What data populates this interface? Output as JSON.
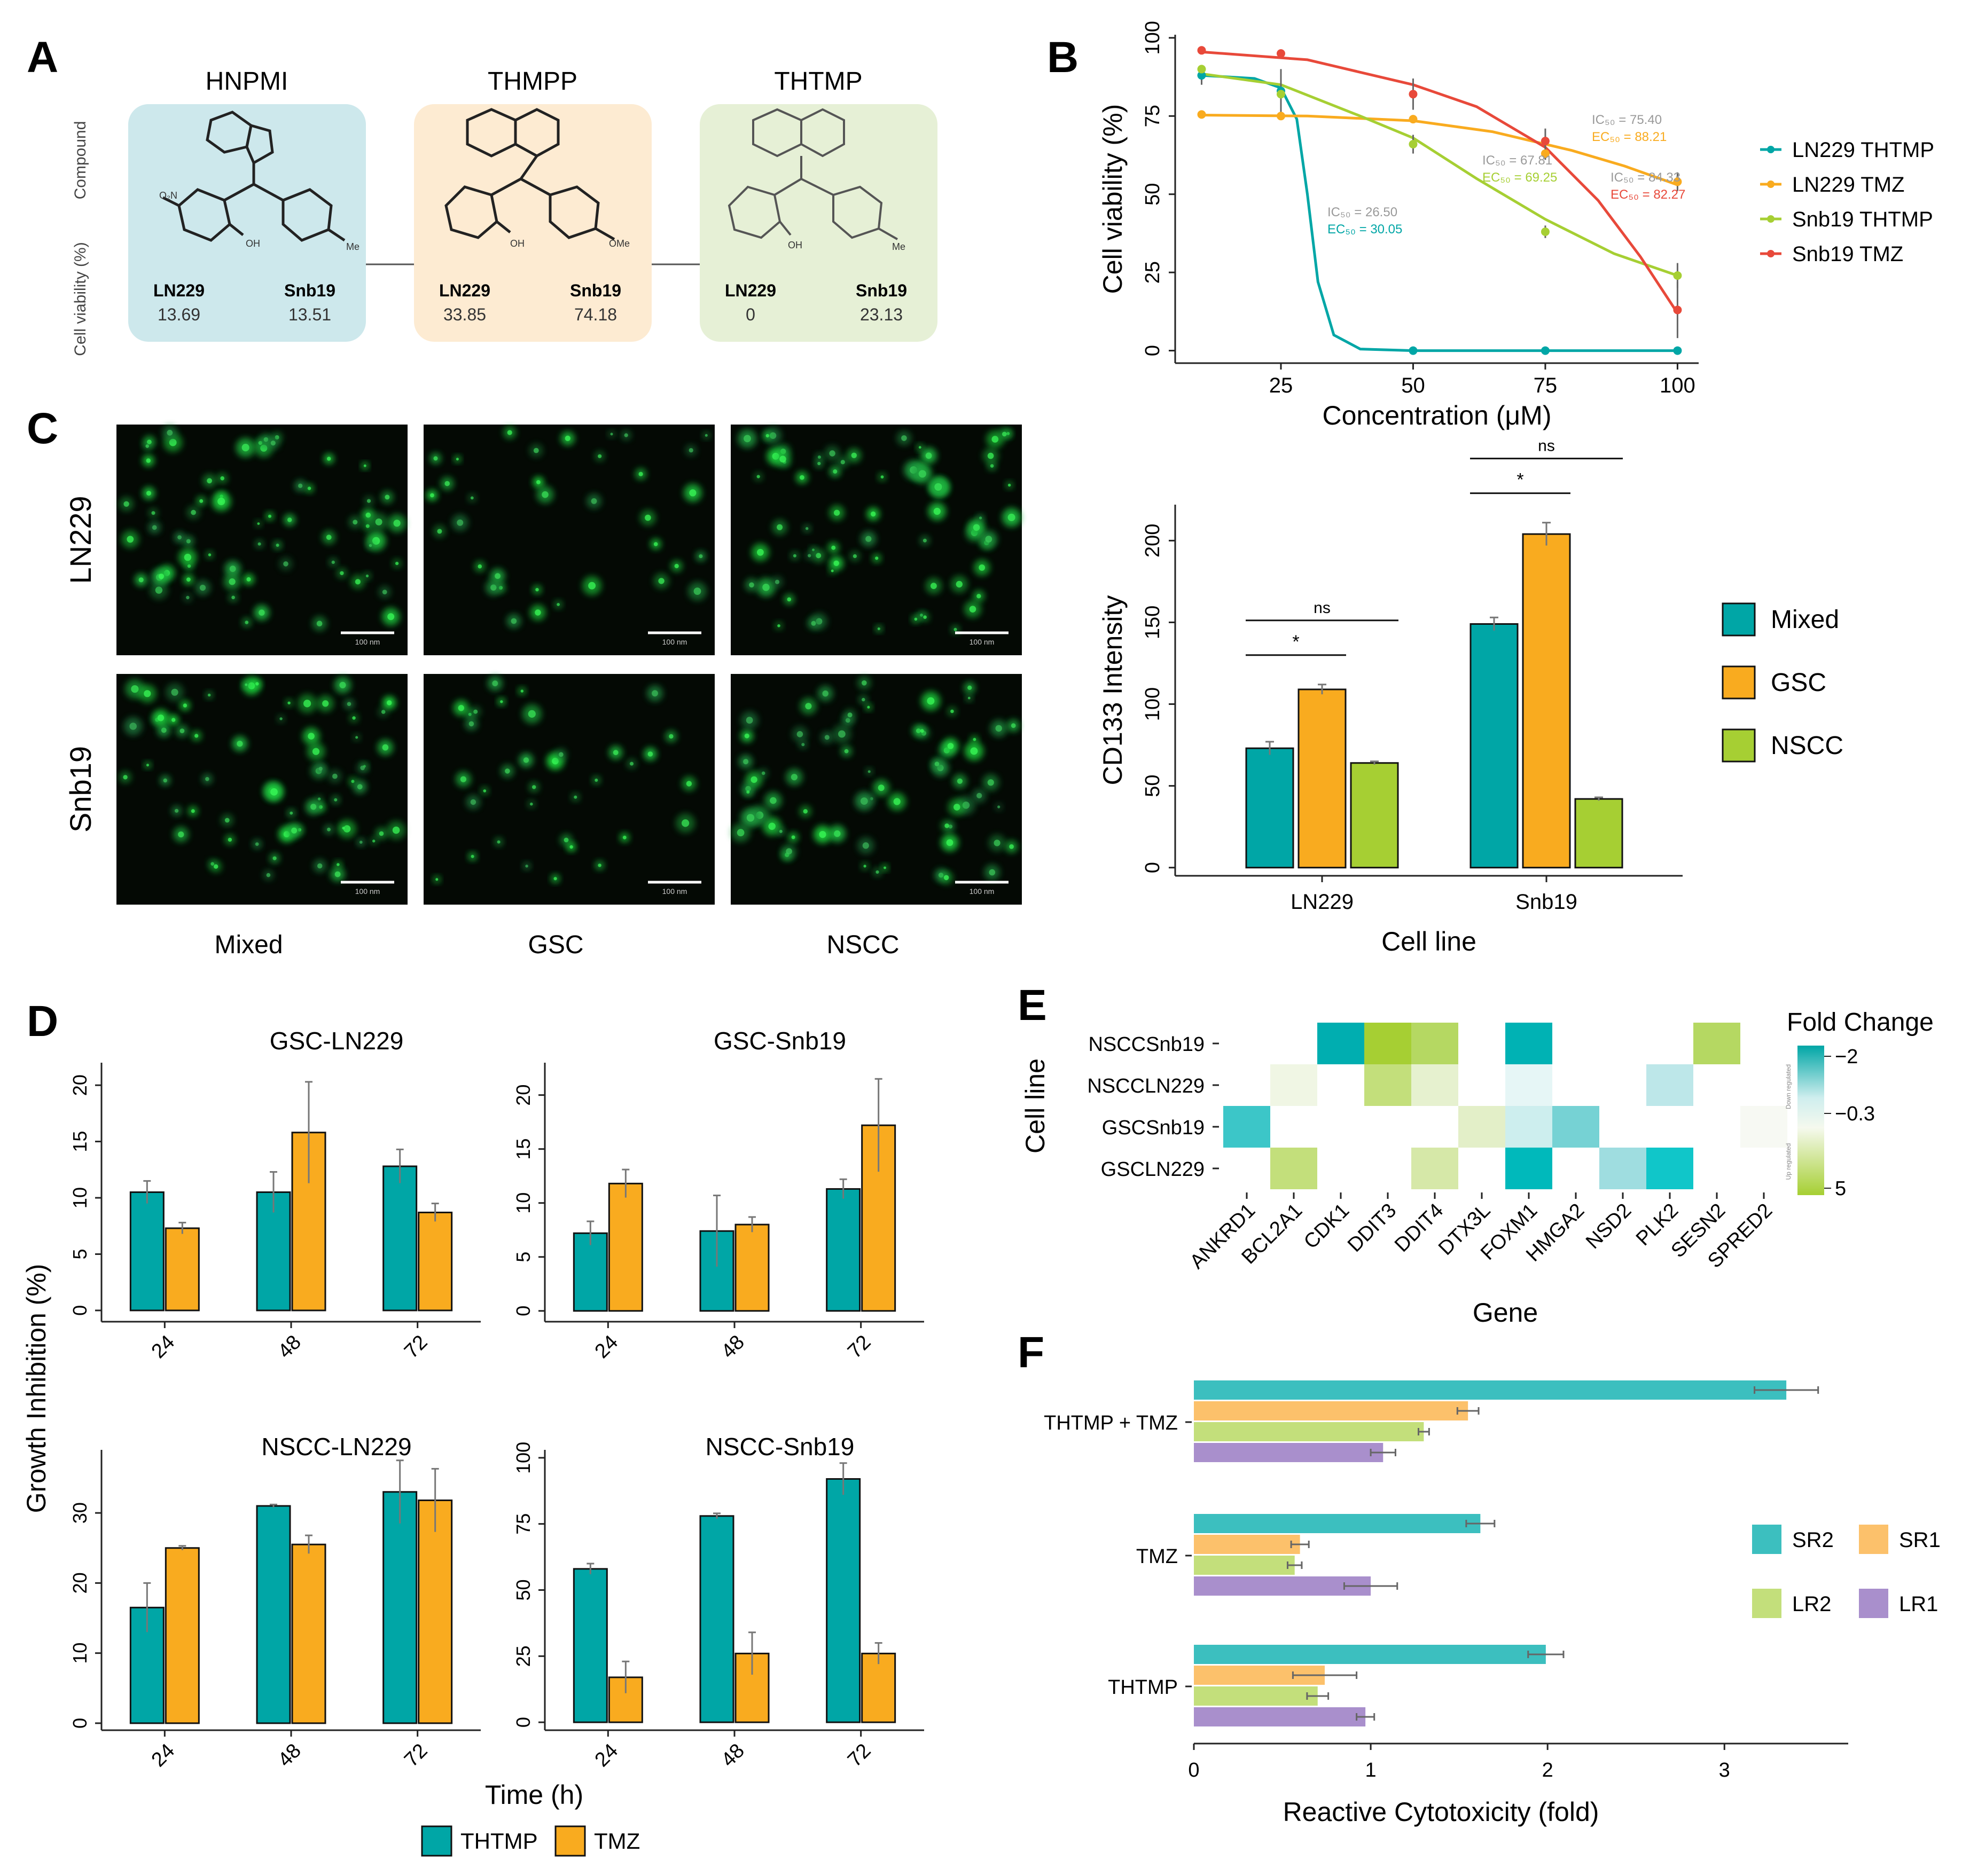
{
  "panel_letters": [
    "A",
    "B",
    "C",
    "D",
    "E",
    "F"
  ],
  "colors": {
    "teal": "#00a6a6",
    "orange": "#f9ab1f",
    "green": "#a6cf33",
    "red": "#e8493a",
    "sr2": "#3cbfbf",
    "sr1": "#fcc16b",
    "lr2": "#c3df7b",
    "lr1": "#a98fcc",
    "cardA": "#cde8ec",
    "cardB": "#fdebd2",
    "cardC": "#e6f0d6"
  },
  "panelA": {
    "row_labels": [
      "Compound",
      "Cell viability (%)"
    ],
    "compounds": [
      {
        "name": "HNPMI",
        "cells": [
          "LN229",
          "Snb19"
        ],
        "values": [
          "13.69",
          "13.51"
        ],
        "substituents": [
          "O₂N",
          "OH",
          "Me"
        ]
      },
      {
        "name": "THMPP",
        "cells": [
          "LN229",
          "Snb19"
        ],
        "values": [
          "33.85",
          "74.18"
        ],
        "substituents": [
          "OH",
          "OMe"
        ]
      },
      {
        "name": "THTMP",
        "cells": [
          "LN229",
          "Snb19"
        ],
        "values": [
          "0",
          "23.13"
        ],
        "substituents": [
          "OH",
          "Me"
        ]
      }
    ]
  },
  "chart_data": [
    {
      "panel": "B",
      "type": "line",
      "xlabel": "Concentration (μM)",
      "ylabel": "Cell viability (%)",
      "xticks": [
        25,
        50,
        75,
        100
      ],
      "yticks": [
        0,
        25,
        50,
        75,
        100
      ],
      "xlim": [
        5,
        104
      ],
      "ylim": [
        -4,
        101
      ],
      "series": [
        {
          "name": "LN229 THTMP",
          "color": "#00a6a6",
          "points": [
            [
              10,
              88
            ],
            [
              25,
              83
            ],
            [
              50,
              0
            ],
            [
              75,
              0
            ],
            [
              100,
              0
            ]
          ],
          "curve": [
            [
              10,
              88
            ],
            [
              20,
              87
            ],
            [
              25,
              84
            ],
            [
              28,
              74
            ],
            [
              30,
              50
            ],
            [
              32,
              22
            ],
            [
              35,
              5
            ],
            [
              40,
              0.5
            ],
            [
              50,
              0
            ],
            [
              75,
              0
            ],
            [
              100,
              0
            ]
          ]
        },
        {
          "name": "LN229 TMZ",
          "color": "#f9ab1f",
          "points": [
            [
              10,
              75.5
            ],
            [
              25,
              75
            ],
            [
              50,
              74
            ],
            [
              75,
              63
            ],
            [
              100,
              54
            ]
          ],
          "curve": [
            [
              10,
              75.3
            ],
            [
              30,
              75
            ],
            [
              50,
              73.5
            ],
            [
              65,
              70
            ],
            [
              80,
              64
            ],
            [
              90,
              59
            ],
            [
              100,
              53
            ]
          ]
        },
        {
          "name": "Snb19 THTMP",
          "color": "#a6cf33",
          "points": [
            [
              10,
              90
            ],
            [
              25,
              82
            ],
            [
              50,
              66
            ],
            [
              75,
              38
            ],
            [
              100,
              24
            ]
          ],
          "curve": [
            [
              10,
              88.5
            ],
            [
              25,
              85
            ],
            [
              40,
              75
            ],
            [
              50,
              68
            ],
            [
              62,
              55
            ],
            [
              75,
              42
            ],
            [
              88,
              31
            ],
            [
              100,
              24
            ]
          ]
        },
        {
          "name": "Snb19 TMZ",
          "color": "#e8493a",
          "points": [
            [
              10,
              96
            ],
            [
              25,
              95
            ],
            [
              50,
              82
            ],
            [
              75,
              67
            ],
            [
              100,
              13
            ]
          ],
          "curve": [
            [
              10,
              95.5
            ],
            [
              30,
              93
            ],
            [
              50,
              85
            ],
            [
              62,
              78
            ],
            [
              75,
              65
            ],
            [
              85,
              48
            ],
            [
              93,
              30
            ],
            [
              100,
              12
            ]
          ]
        }
      ],
      "errors": [
        [
          25,
          83,
          7
        ],
        [
          50,
          82,
          5
        ],
        [
          75,
          67,
          4
        ],
        [
          75,
          63,
          2
        ],
        [
          100,
          54,
          3
        ],
        [
          100,
          24,
          4
        ],
        [
          100,
          13,
          9
        ],
        [
          10,
          88,
          3
        ],
        [
          50,
          66,
          3
        ],
        [
          75,
          38,
          2
        ]
      ],
      "annotations": [
        {
          "lines": [
            "IC₅₀ = 26.50",
            "EC₅₀ = 30.05"
          ],
          "color": "#00a6a6"
        },
        {
          "lines": [
            "IC₅₀ = 67.81",
            "EC₅₀ = 69.25"
          ],
          "color": "#a6cf33"
        },
        {
          "lines": [
            "IC₅₀ = 75.40",
            "EC₅₀ = 88.21"
          ],
          "color": "#f9ab1f"
        },
        {
          "lines": [
            "IC₅₀ = 84.33",
            "EC₅₀ = 82.27"
          ],
          "color": "#e8493a"
        }
      ]
    },
    {
      "panel": "C",
      "type": "bar",
      "categories": [
        "LN229",
        "Snb19"
      ],
      "series": [
        {
          "name": "Mixed",
          "color": "#00a6a6",
          "values": [
            73,
            149
          ],
          "err": [
            4,
            4
          ]
        },
        {
          "name": "GSC",
          "color": "#f9ab1f",
          "values": [
            109,
            204
          ],
          "err": [
            3,
            7
          ]
        },
        {
          "name": "NSCC",
          "color": "#a6cf33",
          "values": [
            64,
            42
          ],
          "err": [
            1,
            1
          ]
        }
      ],
      "xlabel": "Cell line",
      "ylabel": "CD133 Intensity",
      "yticks": [
        0,
        50,
        100,
        150,
        200
      ],
      "ylim": [
        -5,
        222
      ],
      "significance": [
        {
          "group": 0,
          "from": 0,
          "to": 1,
          "label": "*"
        },
        {
          "group": 0,
          "from": 0,
          "to": 2,
          "label": "ns"
        },
        {
          "group": 1,
          "from": 0,
          "to": 1,
          "label": "*"
        },
        {
          "group": 1,
          "from": 0,
          "to": 2,
          "label": "ns"
        }
      ]
    },
    {
      "panel": "D",
      "type": "bar",
      "xlabel": "Time (h)",
      "ylabel": "Growth Inhibition (%)",
      "legend": [
        {
          "name": "THTMP",
          "color": "#00a6a6"
        },
        {
          "name": "TMZ",
          "color": "#f9ab1f"
        }
      ],
      "subplots": [
        {
          "title": "GSC-LN229",
          "categories": [
            "24",
            "48",
            "72"
          ],
          "ylim": [
            -1,
            22
          ],
          "yticks": [
            0,
            5,
            10,
            15,
            20
          ],
          "series": [
            {
              "name": "THTMP",
              "values": [
                10.5,
                10.5,
                12.8
              ],
              "err": [
                1.0,
                1.8,
                1.5
              ]
            },
            {
              "name": "TMZ",
              "values": [
                7.3,
                15.8,
                8.7
              ],
              "err": [
                0.5,
                4.5,
                0.8
              ]
            }
          ]
        },
        {
          "title": "GSC-Snb19",
          "categories": [
            "24",
            "48",
            "72"
          ],
          "ylim": [
            -1,
            23
          ],
          "yticks": [
            0,
            5,
            10,
            15,
            20
          ],
          "series": [
            {
              "name": "THTMP",
              "values": [
                7.2,
                7.4,
                11.3
              ],
              "err": [
                1.1,
                3.3,
                0.9
              ]
            },
            {
              "name": "TMZ",
              "values": [
                11.8,
                8.0,
                17.2
              ],
              "err": [
                1.3,
                0.7,
                4.3
              ]
            }
          ]
        },
        {
          "title": "NSCC-LN229",
          "categories": [
            "24",
            "48",
            "72"
          ],
          "ylim": [
            -1,
            39
          ],
          "yticks": [
            0,
            10,
            20,
            30
          ],
          "series": [
            {
              "name": "THTMP",
              "values": [
                16.5,
                31,
                33
              ],
              "err": [
                3.5,
                0.2,
                4.5
              ]
            },
            {
              "name": "TMZ",
              "values": [
                25,
                25.5,
                31.8
              ],
              "err": [
                0.3,
                1.3,
                4.5
              ]
            }
          ]
        },
        {
          "title": "NSCC-Snb19",
          "categories": [
            "24",
            "48",
            "72"
          ],
          "ylim": [
            -3,
            103
          ],
          "yticks": [
            0,
            25,
            50,
            75,
            100
          ],
          "series": [
            {
              "name": "THTMP",
              "values": [
                58,
                78,
                92
              ],
              "err": [
                2,
                1,
                6
              ]
            },
            {
              "name": "TMZ",
              "values": [
                17,
                26,
                26
              ],
              "err": [
                6,
                8,
                4
              ]
            }
          ]
        }
      ]
    },
    {
      "panel": "E",
      "type": "heatmap",
      "xlabel": "Gene",
      "ylabel": "Cell line",
      "legend_title": "Fold Change",
      "legend_ticks": [
        "−2",
        "−0.3",
        "5"
      ],
      "legend_side_labels": [
        "Down regulated",
        "Up regulated"
      ],
      "genes": [
        "ANKRD1",
        "BCL2A1",
        "CDK1",
        "DDIT3",
        "DDIT4",
        "DTX3L",
        "FOXM1",
        "HMGA2",
        "NSD2",
        "PLK2",
        "SESN2",
        "SPRED2"
      ],
      "rows": [
        "NSCCSnb19",
        "NSCCLN229",
        "GSCSnb19",
        "GSCLN229"
      ],
      "cells": [
        [
          null,
          null,
          "#00aeb0",
          "#a6cf33",
          "#b5d862",
          null,
          "#00b2b4",
          null,
          null,
          null,
          "#b5d862",
          null
        ],
        [
          null,
          "#f0f6e4",
          null,
          "#c3df7b",
          "#e6f1cf",
          null,
          "#e6f6f6",
          null,
          null,
          "#bde7e9",
          null,
          null
        ],
        [
          "#3cc6c8",
          null,
          null,
          null,
          null,
          "#e3efc8",
          "#cdeeee",
          "#76d2d4",
          null,
          null,
          null,
          "#f7f9f3"
        ],
        [
          null,
          "#c3df7b",
          null,
          null,
          "#d6e8a8",
          null,
          "#00b9bb",
          null,
          "#9fdde0",
          "#10c6c9",
          null,
          null
        ]
      ]
    },
    {
      "panel": "F",
      "type": "bar",
      "orientation": "horizontal",
      "xlabel": "Reactive Cytotoxicity (fold)",
      "xticks": [
        0,
        1,
        2,
        3
      ],
      "xlim": [
        0,
        3.7
      ],
      "categories": [
        "THTMP + TMZ",
        "TMZ",
        "THTMP"
      ],
      "series": [
        {
          "name": "SR2",
          "color": "#3cbfbf",
          "values": [
            3.35,
            1.62,
            1.99
          ],
          "err": [
            0.18,
            0.08,
            0.1
          ]
        },
        {
          "name": "SR1",
          "color": "#fcc16b",
          "values": [
            1.55,
            0.6,
            0.74
          ],
          "err": [
            0.06,
            0.05,
            0.18
          ]
        },
        {
          "name": "LR2",
          "color": "#c3df7b",
          "values": [
            1.3,
            0.57,
            0.7
          ],
          "err": [
            0.03,
            0.04,
            0.06
          ]
        },
        {
          "name": "LR1",
          "color": "#a98fcc",
          "values": [
            1.07,
            1.0,
            0.97
          ],
          "err": [
            0.07,
            0.15,
            0.05
          ]
        }
      ]
    }
  ],
  "panelC_images": {
    "rows": [
      "LN229",
      "Snb19"
    ],
    "cols": [
      "Mixed",
      "GSC",
      "NSCC"
    ],
    "scale_bar": "100 nm"
  }
}
